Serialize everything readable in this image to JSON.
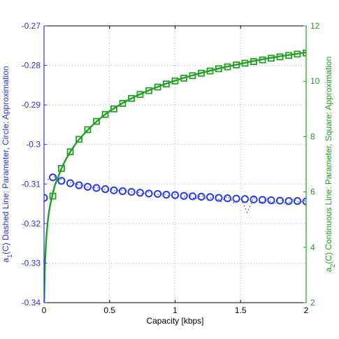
{
  "chart_data": {
    "type": "line",
    "title": "",
    "xlabel": "Capacity [kbps]",
    "ylabel_left": "a₁(C) Dashed Line: Parameter, Circle: Approximation",
    "ylabel_left_parts": [
      "a",
      "1",
      "(C) Dashed Line: Parameter, Circle: Approximation"
    ],
    "ylabel_right_parts": [
      "a",
      "2",
      "(C) Continuous Line: Parameter, Square: Approximation"
    ],
    "xlim": [
      0,
      2
    ],
    "ylim_left": [
      -0.34,
      -0.27
    ],
    "ylim_right": [
      2,
      12
    ],
    "x_ticks": [
      "0",
      "0.5",
      "1",
      "1.5",
      "2"
    ],
    "y_left_ticks": [
      "-0.34",
      "-0.33",
      "-0.32",
      "-0.31",
      "-0.3",
      "-0.29",
      "-0.28",
      "-0.27"
    ],
    "y_right_ticks": [
      "2",
      "4",
      "6",
      "8",
      "10",
      "12"
    ],
    "grid": true,
    "colors": {
      "left_axis": "#3030e0",
      "right_axis": "#20a020",
      "a1": "#2a3df0",
      "a2": "#22a022"
    },
    "series": [
      {
        "axis": "left",
        "style": "circle",
        "x": [
          0.0,
          0.067,
          0.133,
          0.2,
          0.267,
          0.333,
          0.4,
          0.467,
          0.533,
          0.6,
          0.667,
          0.733,
          0.8,
          0.867,
          0.933,
          1.0,
          1.067,
          1.133,
          1.2,
          1.267,
          1.333,
          1.4,
          1.467,
          1.533,
          1.6,
          1.667,
          1.733,
          1.8,
          1.867,
          1.933,
          2.0
        ],
        "y": [
          -0.3135,
          -0.3083,
          -0.3092,
          -0.3098,
          -0.3103,
          -0.3107,
          -0.311,
          -0.3113,
          -0.3116,
          -0.3118,
          -0.312,
          -0.3122,
          -0.3124,
          -0.3125,
          -0.3127,
          -0.3128,
          -0.313,
          -0.3131,
          -0.3132,
          -0.3133,
          -0.3135,
          -0.3136,
          -0.3137,
          -0.3138,
          -0.3139,
          -0.314,
          -0.3141,
          -0.3142,
          -0.3143,
          -0.3143,
          -0.3144
        ]
      },
      {
        "axis": "left",
        "style": "dashed",
        "x": [
          0.03,
          0.05,
          0.07,
          0.1,
          0.13,
          0.17,
          0.2,
          0.25,
          0.3,
          0.35,
          0.4,
          0.45,
          0.5,
          0.55,
          0.6,
          0.65,
          0.7,
          0.75,
          0.8,
          0.85,
          0.9,
          0.95,
          1.0,
          1.05,
          1.1,
          1.15,
          1.2,
          1.25,
          1.3,
          1.35,
          1.4,
          1.45,
          1.5,
          1.55,
          1.6,
          1.65,
          1.7,
          1.75,
          1.8,
          1.85,
          1.9,
          1.95,
          2.0
        ],
        "y": [
          -0.309,
          -0.3075,
          -0.308,
          -0.3085,
          -0.3088,
          -0.3094,
          -0.3096,
          -0.3101,
          -0.3104,
          -0.3109,
          -0.3108,
          -0.3114,
          -0.3112,
          -0.3118,
          -0.3115,
          -0.3121,
          -0.3119,
          -0.3125,
          -0.312,
          -0.3128,
          -0.3124,
          -0.313,
          -0.3127,
          -0.3134,
          -0.3126,
          -0.3138,
          -0.3129,
          -0.3141,
          -0.3128,
          -0.3145,
          -0.3131,
          -0.3148,
          -0.3135,
          -0.3172,
          -0.3134,
          -0.3149,
          -0.3136,
          -0.3152,
          -0.3135,
          -0.3153,
          -0.3138,
          -0.3147,
          -0.3141
        ]
      },
      {
        "axis": "right",
        "style": "square",
        "x": [
          0.067,
          0.133,
          0.2,
          0.267,
          0.333,
          0.4,
          0.467,
          0.533,
          0.6,
          0.667,
          0.733,
          0.8,
          0.867,
          0.933,
          1.0,
          1.067,
          1.133,
          1.2,
          1.267,
          1.333,
          1.4,
          1.467,
          1.533,
          1.6,
          1.667,
          1.733,
          1.8,
          1.867,
          1.933,
          2.0
        ],
        "y": [
          5.85,
          6.85,
          7.45,
          7.9,
          8.25,
          8.55,
          8.8,
          9.0,
          9.2,
          9.38,
          9.52,
          9.66,
          9.79,
          9.9,
          10.01,
          10.11,
          10.2,
          10.29,
          10.37,
          10.45,
          10.52,
          10.59,
          10.65,
          10.71,
          10.77,
          10.83,
          10.88,
          10.93,
          10.98,
          11.02
        ]
      },
      {
        "axis": "right",
        "style": "solid",
        "x": [
          0.001,
          0.003,
          0.006,
          0.01,
          0.015,
          0.02,
          0.03,
          0.04,
          0.05,
          0.067,
          0.08,
          0.1,
          0.133,
          0.167,
          0.2,
          0.25,
          0.3,
          0.35,
          0.4,
          0.45,
          0.5,
          0.6,
          0.7,
          0.8,
          0.9,
          1.0,
          1.1,
          1.2,
          1.3,
          1.4,
          1.5,
          1.6,
          1.7,
          1.8,
          1.9,
          2.0
        ],
        "y": [
          2.0,
          2.6,
          3.2,
          3.7,
          4.15,
          4.5,
          5.0,
          5.35,
          5.6,
          5.95,
          6.2,
          6.45,
          6.85,
          7.18,
          7.45,
          7.8,
          8.07,
          8.32,
          8.54,
          8.74,
          8.92,
          9.21,
          9.46,
          9.67,
          9.86,
          10.02,
          10.17,
          10.3,
          10.42,
          10.53,
          10.63,
          10.73,
          10.82,
          10.9,
          10.97,
          11.04
        ]
      }
    ]
  }
}
